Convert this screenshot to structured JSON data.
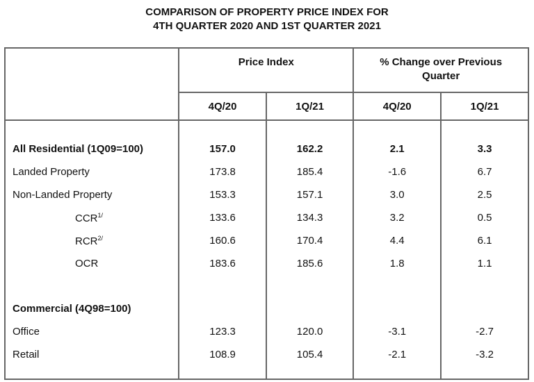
{
  "title": {
    "line1": "COMPARISON OF PROPERTY PRICE INDEX FOR",
    "line2": "4TH QUARTER 2020 AND 1ST QUARTER 2021"
  },
  "headers": {
    "price_index": "Price Index",
    "pct_change": "% Change over Previous Quarter",
    "sub": [
      "4Q/20",
      "1Q/21",
      "4Q/20",
      "1Q/21"
    ]
  },
  "rows": [
    {
      "label": "All Residential (1Q09=100)",
      "sup": "",
      "values": [
        "157.0",
        "162.2",
        "2.1",
        "3.3"
      ]
    },
    {
      "label": "Landed Property",
      "sup": "",
      "values": [
        "173.8",
        "185.4",
        "-1.6",
        "6.7"
      ]
    },
    {
      "label": "Non-Landed Property",
      "sup": "",
      "values": [
        "153.3",
        "157.1",
        "3.0",
        "2.5"
      ]
    },
    {
      "label": "CCR",
      "sup": "1/",
      "values": [
        "133.6",
        "134.3",
        "3.2",
        "0.5"
      ]
    },
    {
      "label": "RCR",
      "sup": "2/",
      "values": [
        "160.6",
        "170.4",
        "4.4",
        "6.1"
      ]
    },
    {
      "label": "OCR",
      "sup": "",
      "values": [
        "183.6",
        "185.6",
        "1.8",
        "1.1"
      ]
    },
    {
      "label": "Commercial (4Q98=100)",
      "sup": "",
      "values": [
        "",
        "",
        "",
        ""
      ]
    },
    {
      "label": "Office",
      "sup": "",
      "values": [
        "123.3",
        "120.0",
        "-3.1",
        "-2.7"
      ]
    },
    {
      "label": "Retail",
      "sup": "",
      "values": [
        "108.9",
        "105.4",
        "-2.1",
        "-3.2"
      ]
    }
  ]
}
